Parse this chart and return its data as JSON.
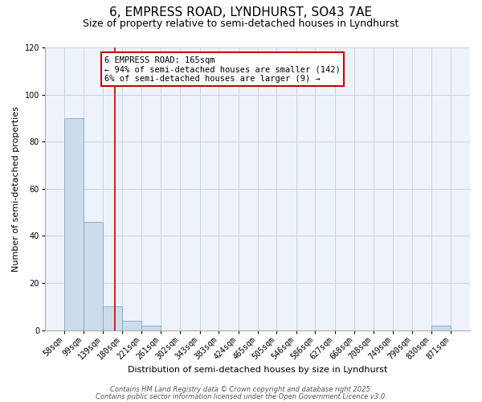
{
  "title": "6, EMPRESS ROAD, LYNDHURST, SO43 7AE",
  "subtitle": "Size of property relative to semi-detached houses in Lyndhurst",
  "xlabel": "Distribution of semi-detached houses by size in Lyndhurst",
  "ylabel": "Number of semi-detached properties",
  "bin_edges": [
    58,
    99,
    139,
    180,
    221,
    261,
    302,
    343,
    383,
    424,
    465,
    505,
    546,
    586,
    627,
    668,
    708,
    749,
    790,
    830,
    871
  ],
  "bin_counts": [
    90,
    46,
    10,
    4,
    2,
    0,
    0,
    0,
    0,
    0,
    0,
    0,
    0,
    0,
    0,
    0,
    0,
    0,
    0,
    2
  ],
  "bar_color": "#ccdcec",
  "bar_edge_color": "#7aaac8",
  "vline_x": 165,
  "vline_color": "#cc0000",
  "ylim": [
    0,
    120
  ],
  "yticks": [
    0,
    20,
    40,
    60,
    80,
    100,
    120
  ],
  "annotation_title": "6 EMPRESS ROAD: 165sqm",
  "annotation_line1": "← 94% of semi-detached houses are smaller (142)",
  "annotation_line2": "6% of semi-detached houses are larger (9) →",
  "annotation_box_color": "#cc0000",
  "grid_color": "#c8d4e4",
  "bg_color": "#eef2fa",
  "footer_line1": "Contains HM Land Registry data © Crown copyright and database right 2025.",
  "footer_line2": "Contains public sector information licensed under the Open Government Licence v3.0.",
  "title_fontsize": 11,
  "subtitle_fontsize": 9,
  "axis_label_fontsize": 8,
  "tick_fontsize": 7,
  "annotation_fontsize": 7.5,
  "footer_fontsize": 6
}
